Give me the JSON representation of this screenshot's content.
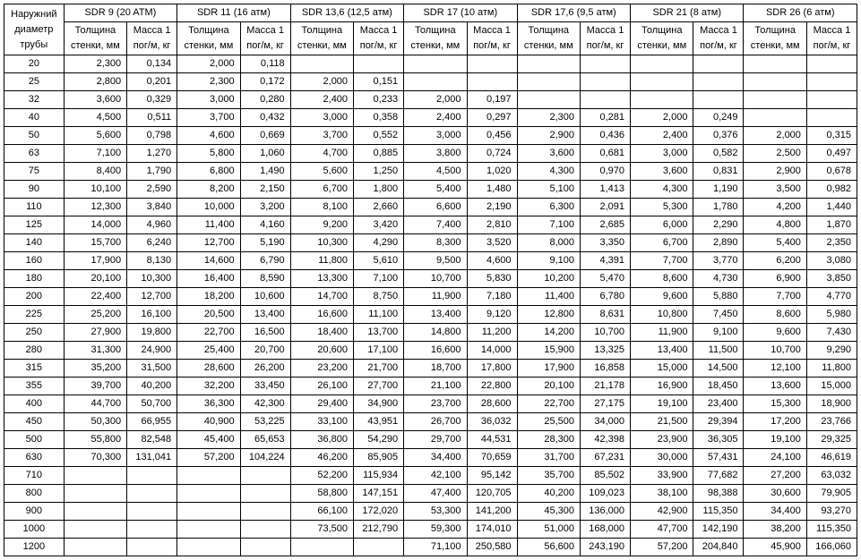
{
  "rowHeader": {
    "line1": "Наружний",
    "line2": "диаметр",
    "line3": "трубы"
  },
  "subHeaders": {
    "thickness": "Толщина стенки, мм",
    "mass": "Масса 1 пог/м, кг"
  },
  "sdrGroups": [
    {
      "label": "SDR 9 (20 ATM)"
    },
    {
      "label": "SDR 11 (16 атм)"
    },
    {
      "label": "SDR 13,6 (12,5 атм)"
    },
    {
      "label": "SDR 17 (10 атм)"
    },
    {
      "label": "SDR 17,6 (9,5 атм)"
    },
    {
      "label": "SDR 21 (8 атм)"
    },
    {
      "label": "SDR 26 (6 атм)"
    }
  ],
  "diameters": [
    20,
    25,
    32,
    40,
    50,
    63,
    75,
    90,
    110,
    125,
    140,
    160,
    180,
    200,
    225,
    250,
    280,
    315,
    355,
    400,
    450,
    500,
    630,
    710,
    800,
    900,
    1000,
    1200
  ],
  "data": {
    "20": [
      [
        "2,300",
        "0,134"
      ],
      [
        "2,000",
        "0,118"
      ],
      null,
      null,
      null,
      null,
      null
    ],
    "25": [
      [
        "2,800",
        "0,201"
      ],
      [
        "2,300",
        "0,172"
      ],
      [
        "2,000",
        "0,151"
      ],
      null,
      null,
      null,
      null
    ],
    "32": [
      [
        "3,600",
        "0,329"
      ],
      [
        "3,000",
        "0,280"
      ],
      [
        "2,400",
        "0,233"
      ],
      [
        "2,000",
        "0,197"
      ],
      null,
      null,
      null
    ],
    "40": [
      [
        "4,500",
        "0,511"
      ],
      [
        "3,700",
        "0,432"
      ],
      [
        "3,000",
        "0,358"
      ],
      [
        "2,400",
        "0,297"
      ],
      [
        "2,300",
        "0,281"
      ],
      [
        "2,000",
        "0,249"
      ],
      null
    ],
    "50": [
      [
        "5,600",
        "0,798"
      ],
      [
        "4,600",
        "0,669"
      ],
      [
        "3,700",
        "0,552"
      ],
      [
        "3,000",
        "0,456"
      ],
      [
        "2,900",
        "0,436"
      ],
      [
        "2,400",
        "0,376"
      ],
      [
        "2,000",
        "0,315"
      ]
    ],
    "63": [
      [
        "7,100",
        "1,270"
      ],
      [
        "5,800",
        "1,060"
      ],
      [
        "4,700",
        "0,885"
      ],
      [
        "3,800",
        "0,724"
      ],
      [
        "3,600",
        "0,681"
      ],
      [
        "3,000",
        "0,582"
      ],
      [
        "2,500",
        "0,497"
      ]
    ],
    "75": [
      [
        "8,400",
        "1,790"
      ],
      [
        "6,800",
        "1,490"
      ],
      [
        "5,600",
        "1,250"
      ],
      [
        "4,500",
        "1,020"
      ],
      [
        "4,300",
        "0,970"
      ],
      [
        "3,600",
        "0,831"
      ],
      [
        "2,900",
        "0,678"
      ]
    ],
    "90": [
      [
        "10,100",
        "2,590"
      ],
      [
        "8,200",
        "2,150"
      ],
      [
        "6,700",
        "1,800"
      ],
      [
        "5,400",
        "1,480"
      ],
      [
        "5,100",
        "1,413"
      ],
      [
        "4,300",
        "1,190"
      ],
      [
        "3,500",
        "0,982"
      ]
    ],
    "110": [
      [
        "12,300",
        "3,840"
      ],
      [
        "10,000",
        "3,200"
      ],
      [
        "8,100",
        "2,660"
      ],
      [
        "6,600",
        "2,190"
      ],
      [
        "6,300",
        "2,091"
      ],
      [
        "5,300",
        "1,780"
      ],
      [
        "4,200",
        "1,440"
      ]
    ],
    "125": [
      [
        "14,000",
        "4,960"
      ],
      [
        "11,400",
        "4,160"
      ],
      [
        "9,200",
        "3,420"
      ],
      [
        "7,400",
        "2,810"
      ],
      [
        "7,100",
        "2,685"
      ],
      [
        "6,000",
        "2,290"
      ],
      [
        "4,800",
        "1,870"
      ]
    ],
    "140": [
      [
        "15,700",
        "6,240"
      ],
      [
        "12,700",
        "5,190"
      ],
      [
        "10,300",
        "4,290"
      ],
      [
        "8,300",
        "3,520"
      ],
      [
        "8,000",
        "3,350"
      ],
      [
        "6,700",
        "2,890"
      ],
      [
        "5,400",
        "2,350"
      ]
    ],
    "160": [
      [
        "17,900",
        "8,130"
      ],
      [
        "14,600",
        "6,790"
      ],
      [
        "11,800",
        "5,610"
      ],
      [
        "9,500",
        "4,600"
      ],
      [
        "9,100",
        "4,391"
      ],
      [
        "7,700",
        "3,770"
      ],
      [
        "6,200",
        "3,080"
      ]
    ],
    "180": [
      [
        "20,100",
        "10,300"
      ],
      [
        "16,400",
        "8,590"
      ],
      [
        "13,300",
        "7,100"
      ],
      [
        "10,700",
        "5,830"
      ],
      [
        "10,200",
        "5,470"
      ],
      [
        "8,600",
        "4,730"
      ],
      [
        "6,900",
        "3,850"
      ]
    ],
    "200": [
      [
        "22,400",
        "12,700"
      ],
      [
        "18,200",
        "10,600"
      ],
      [
        "14,700",
        "8,750"
      ],
      [
        "11,900",
        "7,180"
      ],
      [
        "11,400",
        "6,780"
      ],
      [
        "9,600",
        "5,880"
      ],
      [
        "7,700",
        "4,770"
      ]
    ],
    "225": [
      [
        "25,200",
        "16,100"
      ],
      [
        "20,500",
        "13,400"
      ],
      [
        "16,600",
        "11,100"
      ],
      [
        "13,400",
        "9,120"
      ],
      [
        "12,800",
        "8,631"
      ],
      [
        "10,800",
        "7,450"
      ],
      [
        "8,600",
        "5,980"
      ]
    ],
    "250": [
      [
        "27,900",
        "19,800"
      ],
      [
        "22,700",
        "16,500"
      ],
      [
        "18,400",
        "13,700"
      ],
      [
        "14,800",
        "11,200"
      ],
      [
        "14,200",
        "10,700"
      ],
      [
        "11,900",
        "9,100"
      ],
      [
        "9,600",
        "7,430"
      ]
    ],
    "280": [
      [
        "31,300",
        "24,900"
      ],
      [
        "25,400",
        "20,700"
      ],
      [
        "20,600",
        "17,100"
      ],
      [
        "16,600",
        "14,000"
      ],
      [
        "15,900",
        "13,325"
      ],
      [
        "13,400",
        "11,500"
      ],
      [
        "10,700",
        "9,290"
      ]
    ],
    "315": [
      [
        "35,200",
        "31,500"
      ],
      [
        "28,600",
        "26,200"
      ],
      [
        "23,200",
        "21,700"
      ],
      [
        "18,700",
        "17,800"
      ],
      [
        "17,900",
        "16,858"
      ],
      [
        "15,000",
        "14,500"
      ],
      [
        "12,100",
        "11,800"
      ]
    ],
    "355": [
      [
        "39,700",
        "40,200"
      ],
      [
        "32,200",
        "33,450"
      ],
      [
        "26,100",
        "27,700"
      ],
      [
        "21,100",
        "22,800"
      ],
      [
        "20,100",
        "21,178"
      ],
      [
        "16,900",
        "18,450"
      ],
      [
        "13,600",
        "15,000"
      ]
    ],
    "400": [
      [
        "44,700",
        "50,700"
      ],
      [
        "36,300",
        "42,300"
      ],
      [
        "29,400",
        "34,900"
      ],
      [
        "23,700",
        "28,600"
      ],
      [
        "22,700",
        "27,175"
      ],
      [
        "19,100",
        "23,400"
      ],
      [
        "15,300",
        "18,900"
      ]
    ],
    "450": [
      [
        "50,300",
        "66,955"
      ],
      [
        "40,900",
        "53,225"
      ],
      [
        "33,100",
        "43,951"
      ],
      [
        "26,700",
        "36,032"
      ],
      [
        "25,500",
        "34,000"
      ],
      [
        "21,500",
        "29,394"
      ],
      [
        "17,200",
        "23,766"
      ]
    ],
    "500": [
      [
        "55,800",
        "82,548"
      ],
      [
        "45,400",
        "65,653"
      ],
      [
        "36,800",
        "54,290"
      ],
      [
        "29,700",
        "44,531"
      ],
      [
        "28,300",
        "42,398"
      ],
      [
        "23,900",
        "36,305"
      ],
      [
        "19,100",
        "29,325"
      ]
    ],
    "630": [
      [
        "70,300",
        "131,041"
      ],
      [
        "57,200",
        "104,224"
      ],
      [
        "46,200",
        "85,905"
      ],
      [
        "34,400",
        "70,659"
      ],
      [
        "31,700",
        "67,231"
      ],
      [
        "30,000",
        "57,431"
      ],
      [
        "24,100",
        "46,619"
      ]
    ],
    "710": [
      null,
      null,
      [
        "52,200",
        "115,934"
      ],
      [
        "42,100",
        "95,142"
      ],
      [
        "35,700",
        "85,502"
      ],
      [
        "33,900",
        "77,682"
      ],
      [
        "27,200",
        "63,032"
      ]
    ],
    "800": [
      null,
      null,
      [
        "58,800",
        "147,151"
      ],
      [
        "47,400",
        "120,705"
      ],
      [
        "40,200",
        "109,023"
      ],
      [
        "38,100",
        "98,388"
      ],
      [
        "30,600",
        "79,905"
      ]
    ],
    "900": [
      null,
      null,
      [
        "66,100",
        "172,020"
      ],
      [
        "53,300",
        "141,200"
      ],
      [
        "45,300",
        "136,000"
      ],
      [
        "42,900",
        "115,350"
      ],
      [
        "34,400",
        "93,270"
      ]
    ],
    "1000": [
      null,
      null,
      [
        "73,500",
        "212,790"
      ],
      [
        "59,300",
        "174,010"
      ],
      [
        "51,000",
        "168,000"
      ],
      [
        "47,700",
        "142,190"
      ],
      [
        "38,200",
        "115,350"
      ]
    ],
    "1200": [
      null,
      null,
      null,
      [
        "71,100",
        "250,580"
      ],
      [
        "56,600",
        "243,190"
      ],
      [
        "57,200",
        "204,840"
      ],
      [
        "45,900",
        "166,060"
      ]
    ]
  }
}
